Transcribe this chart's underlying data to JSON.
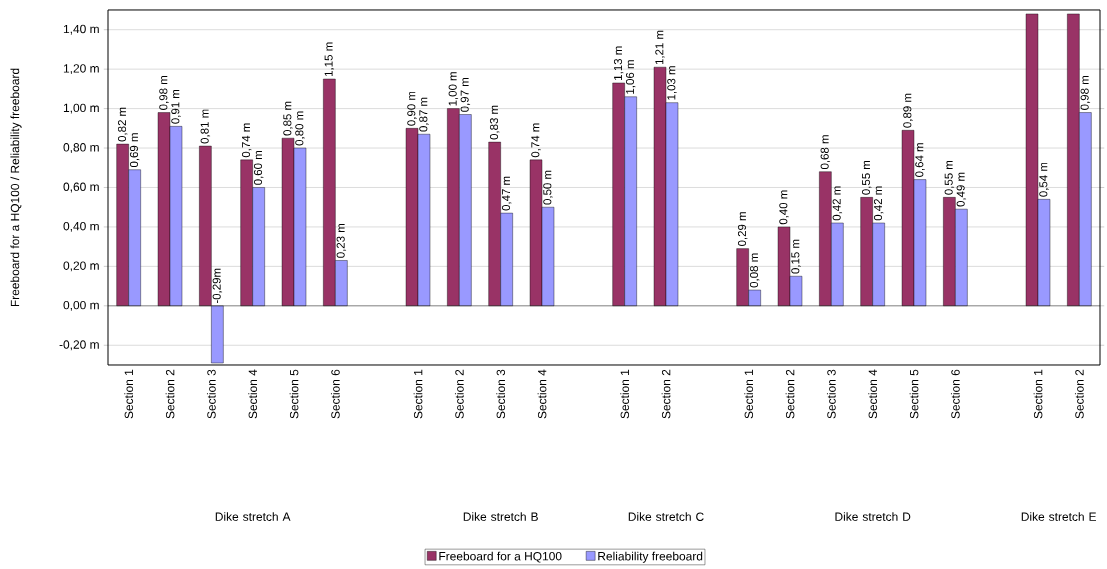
{
  "chart_data": {
    "type": "bar",
    "ylabel": "Freeboard for a HQ100 / Reliability freeboard",
    "categories": [
      "Section 1",
      "Section 2",
      "Section 3",
      "Section 4",
      "Section 5",
      "Section 6",
      null,
      "Section 1",
      "Section 2",
      "Section 3",
      "Section 4",
      null,
      "Section 1",
      "Section 2",
      null,
      "Section 1",
      "Section 2",
      "Section 3",
      "Section 4",
      "Section 5",
      "Section 6",
      null,
      "Section 1",
      "Section 2"
    ],
    "series": [
      {
        "name": "Freeboard for a HQ100",
        "color": "#993366",
        "values": [
          0.82,
          0.98,
          0.81,
          0.74,
          0.85,
          1.15,
          null,
          0.9,
          1.0,
          0.83,
          0.74,
          null,
          1.13,
          1.21,
          null,
          0.29,
          0.4,
          0.68,
          0.55,
          0.89,
          0.55,
          null,
          1.48,
          1.48
        ],
        "value_labels": [
          "0,82 m",
          "0,98 m",
          "0,81 m",
          "0,74 m",
          "0,85 m",
          "1,15 m",
          null,
          "0,90 m",
          "1,00 m",
          "0,83 m",
          "0,74 m",
          null,
          "1,13 m",
          "1,21 m",
          null,
          "0,29 m",
          "0,40 m",
          "0,68 m",
          "0,55 m",
          "0,89 m",
          "0,55 m",
          null,
          null,
          null
        ]
      },
      {
        "name": "Reliability freeboard",
        "color": "#9999ff",
        "values": [
          0.69,
          0.91,
          -0.29,
          0.6,
          0.8,
          0.23,
          null,
          0.87,
          0.97,
          0.47,
          0.5,
          null,
          1.06,
          1.03,
          null,
          0.08,
          0.15,
          0.42,
          0.42,
          0.64,
          0.49,
          null,
          0.54,
          0.98
        ],
        "value_labels": [
          "0,69 m",
          "0,91 m",
          "-0,29m",
          "0,60 m",
          "0,80 m",
          "0,23 m",
          null,
          "0,87 m",
          "0,97 m",
          "0,47 m",
          "0,50 m",
          null,
          "1,06 m",
          "1,03 m",
          null,
          "0,08 m",
          "0,15 m",
          "0,42 m",
          "0,42 m",
          "0,64 m",
          "0,49 m",
          null,
          "0,54 m",
          "0,98 m"
        ]
      }
    ],
    "annotations": [
      "Dike stretch A",
      "Dike stretch B",
      "Dike stretch C",
      "Dike stretch D",
      "Dike stretch E"
    ],
    "ylim": [
      -0.3,
      1.5
    ],
    "yticks": [
      {
        "value": -0.2,
        "label": "-0,20 m"
      },
      {
        "value": 0,
        "label": "0,00 m"
      },
      {
        "value": 0.2,
        "label": "0,20 m"
      },
      {
        "value": 0.4,
        "label": "0,40 m"
      },
      {
        "value": 0.6,
        "label": "0,60 m"
      },
      {
        "value": 0.8,
        "label": "0,80 m"
      },
      {
        "value": 1.0,
        "label": "1,00 m"
      },
      {
        "value": 1.2,
        "label": "1,20 m"
      },
      {
        "value": 1.4,
        "label": "1,40 m"
      }
    ],
    "grid": "y",
    "legend": "bottom"
  }
}
